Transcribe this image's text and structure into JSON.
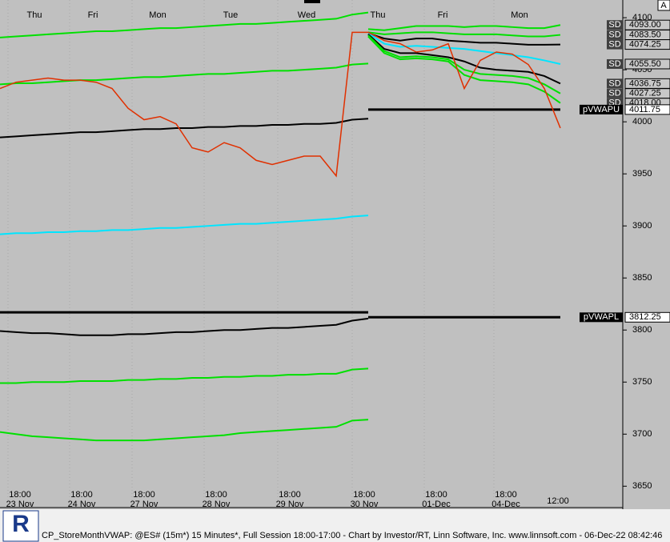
{
  "chart_data": {
    "type": "line",
    "ylim": [
      3631,
      4117
    ],
    "yticks": [
      3650,
      3700,
      3750,
      3800,
      3850,
      3900,
      3950,
      4000,
      4050,
      4100
    ],
    "days_top": [
      "Thu",
      "Fri",
      "Mon",
      "Tue",
      "Wed",
      "Thu",
      "Fri",
      "Mon"
    ],
    "times_bottom": [
      {
        "time": "18:00",
        "date": "23 Nov"
      },
      {
        "time": "18:00",
        "date": "24 Nov"
      },
      {
        "time": "18:00",
        "date": "27 Nov"
      },
      {
        "time": "18:00",
        "date": "28 Nov"
      },
      {
        "time": "18:00",
        "date": "29 Nov"
      },
      {
        "time": "18:00",
        "date": "30 Nov"
      },
      {
        "time": "18:00",
        "date": "01-Dec"
      },
      {
        "time": "18:00",
        "date": "04-Dec"
      }
    ],
    "time_end": "12:00",
    "series": [
      {
        "color": "#00e000",
        "width": 2,
        "values": [
          4081,
          4082,
          4083,
          4084,
          4085,
          4086,
          4087,
          4087,
          4088,
          4089,
          4090,
          4090,
          4091,
          4092,
          4093,
          4094,
          4094,
          4095,
          4096,
          4097,
          4098,
          4099,
          4103,
          4105,
          null,
          null,
          null,
          null,
          null,
          null,
          null,
          null,
          null,
          null,
          null,
          null
        ]
      },
      {
        "color": "#00e000",
        "width": 2,
        "values": [
          4036,
          4037,
          4037,
          4038,
          4039,
          4040,
          4040,
          4041,
          4042,
          4043,
          4043,
          4044,
          4045,
          4046,
          4046,
          4047,
          4048,
          4049,
          4049,
          4050,
          4051,
          4052,
          4055,
          4056,
          null,
          null,
          null,
          null,
          null,
          null,
          null,
          null,
          null,
          null,
          null,
          null
        ]
      },
      {
        "color": "#000000",
        "width": 2,
        "values": [
          3985,
          3986,
          3987,
          3988,
          3989,
          3990,
          3990,
          3991,
          3992,
          3993,
          3993,
          3994,
          3994,
          3995,
          3995,
          3996,
          3996,
          3997,
          3997,
          3998,
          3998,
          3999,
          4002,
          4003,
          null,
          null,
          null,
          null,
          null,
          null,
          null,
          null,
          null,
          null,
          null,
          null
        ]
      },
      {
        "color": "#00e5ff",
        "width": 2,
        "values": [
          3892,
          3893,
          3893,
          3894,
          3894,
          3895,
          3895,
          3896,
          3896,
          3897,
          3898,
          3898,
          3899,
          3900,
          3901,
          3902,
          3902,
          3903,
          3904,
          3905,
          3906,
          3907,
          3909,
          3910,
          null,
          null,
          null,
          null,
          null,
          null,
          null,
          null,
          null,
          null,
          null,
          null
        ]
      },
      {
        "color": "#000000",
        "width": 3,
        "values": [
          3817,
          3817,
          3817,
          3817,
          3817,
          3817,
          3817,
          3817,
          3817,
          3817,
          3817,
          3817,
          3817,
          3817,
          3817,
          3817,
          3817,
          3817,
          3817,
          3817,
          3817,
          3817,
          3817,
          3817,
          null,
          null,
          null,
          null,
          null,
          null,
          null,
          null,
          null,
          null,
          null,
          null
        ]
      },
      {
        "color": "#000000",
        "width": 2,
        "values": [
          3799,
          3798,
          3797,
          3797,
          3796,
          3795,
          3795,
          3795,
          3796,
          3796,
          3797,
          3798,
          3798,
          3799,
          3800,
          3800,
          3801,
          3802,
          3802,
          3803,
          3804,
          3805,
          3809,
          3811,
          null,
          null,
          null,
          null,
          null,
          null,
          null,
          null,
          null,
          null,
          null,
          null
        ]
      },
      {
        "color": "#00e000",
        "width": 2,
        "values": [
          3749,
          3749,
          3750,
          3750,
          3750,
          3751,
          3751,
          3751,
          3752,
          3752,
          3753,
          3753,
          3754,
          3754,
          3755,
          3755,
          3756,
          3756,
          3757,
          3757,
          3758,
          3758,
          3762,
          3763,
          null,
          null,
          null,
          null,
          null,
          null,
          null,
          null,
          null,
          null,
          null,
          null
        ]
      },
      {
        "color": "#00e000",
        "width": 2,
        "values": [
          3702,
          3700,
          3698,
          3697,
          3696,
          3695,
          3694,
          3694,
          3694,
          3694,
          3695,
          3696,
          3697,
          3698,
          3699,
          3701,
          3702,
          3703,
          3704,
          3705,
          3706,
          3707,
          3713,
          3714,
          null,
          null,
          null,
          null,
          null,
          null,
          null,
          null,
          null,
          null,
          null,
          null
        ]
      },
      {
        "color": "#000000",
        "width": 3,
        "values": [
          null,
          null,
          null,
          null,
          null,
          null,
          null,
          null,
          null,
          null,
          null,
          null,
          null,
          null,
          null,
          null,
          null,
          null,
          null,
          null,
          null,
          null,
          null,
          4011.75,
          4011.75,
          4011.75,
          4011.75,
          4011.75,
          4011.75,
          4011.75,
          4011.75,
          4011.75,
          4011.75,
          4011.75,
          4011.75,
          4011.75
        ]
      },
      {
        "color": "#000000",
        "width": 3,
        "values": [
          null,
          null,
          null,
          null,
          null,
          null,
          null,
          null,
          null,
          null,
          null,
          null,
          null,
          null,
          null,
          null,
          null,
          null,
          null,
          null,
          null,
          null,
          null,
          3812.25,
          3812.25,
          3812.25,
          3812.25,
          3812.25,
          3812.25,
          3812.25,
          3812.25,
          3812.25,
          3812.25,
          3812.25,
          3812.25,
          3812.25
        ]
      },
      {
        "color": "#00e000",
        "width": 2,
        "values": [
          null,
          null,
          null,
          null,
          null,
          null,
          null,
          null,
          null,
          null,
          null,
          null,
          null,
          null,
          null,
          null,
          null,
          null,
          null,
          null,
          null,
          null,
          null,
          4089,
          4088,
          4090,
          4092,
          4092,
          4092,
          4091,
          4092,
          4092,
          4091,
          4090,
          4090,
          4093
        ]
      },
      {
        "color": "#00e000",
        "width": 2,
        "values": [
          null,
          null,
          null,
          null,
          null,
          null,
          null,
          null,
          null,
          null,
          null,
          null,
          null,
          null,
          null,
          null,
          null,
          null,
          null,
          null,
          null,
          null,
          null,
          4086,
          4084,
          4085,
          4086,
          4086,
          4085,
          4084,
          4084,
          4084,
          4083,
          4082,
          4082,
          4083.5
        ]
      },
      {
        "color": "#000000",
        "width": 2,
        "values": [
          null,
          null,
          null,
          null,
          null,
          null,
          null,
          null,
          null,
          null,
          null,
          null,
          null,
          null,
          null,
          null,
          null,
          null,
          null,
          null,
          null,
          null,
          null,
          4085,
          4080,
          4078,
          4080,
          4080,
          4078,
          4077,
          4076,
          4076,
          4075,
          4074,
          4074,
          4074.25
        ]
      },
      {
        "color": "#00e5ff",
        "width": 2,
        "values": [
          null,
          null,
          null,
          null,
          null,
          null,
          null,
          null,
          null,
          null,
          null,
          null,
          null,
          null,
          null,
          null,
          null,
          null,
          null,
          null,
          null,
          null,
          null,
          4085,
          4075,
          4072,
          4073,
          4072,
          4071,
          4070,
          4068,
          4066,
          4064,
          4062,
          4059,
          4055.5
        ]
      },
      {
        "color": "#000000",
        "width": 2,
        "values": [
          null,
          null,
          null,
          null,
          null,
          null,
          null,
          null,
          null,
          null,
          null,
          null,
          null,
          null,
          null,
          null,
          null,
          null,
          null,
          null,
          null,
          null,
          null,
          4084,
          4070,
          4066,
          4066,
          4064,
          4062,
          4058,
          4052,
          4050,
          4049,
          4048,
          4044,
          4036.75
        ]
      },
      {
        "color": "#00e000",
        "width": 2,
        "values": [
          null,
          null,
          null,
          null,
          null,
          null,
          null,
          null,
          null,
          null,
          null,
          null,
          null,
          null,
          null,
          null,
          null,
          null,
          null,
          null,
          null,
          null,
          null,
          4083,
          4068,
          4062,
          4063,
          4062,
          4060,
          4050,
          4046,
          4045,
          4044,
          4042,
          4036,
          4027.25
        ]
      },
      {
        "color": "#00e000",
        "width": 2,
        "values": [
          null,
          null,
          null,
          null,
          null,
          null,
          null,
          null,
          null,
          null,
          null,
          null,
          null,
          null,
          null,
          null,
          null,
          null,
          null,
          null,
          null,
          null,
          null,
          4082,
          4066,
          4060,
          4061,
          4060,
          4058,
          4045,
          4040,
          4039,
          4038,
          4036,
          4029,
          4018
        ]
      },
      {
        "color": "#e03000",
        "width": 1.5,
        "values": [
          4032,
          4038,
          4040,
          4042,
          4040,
          4040,
          4038,
          4032,
          4013,
          4002,
          4005,
          3998,
          3975,
          3971,
          3980,
          3975,
          3963,
          3959,
          3963,
          3967,
          3967,
          3948,
          4086,
          4086,
          4078,
          4075,
          4067,
          4069,
          4075,
          4032,
          4059,
          4067,
          4065,
          4055,
          4032,
          3994
        ]
      }
    ],
    "levels": [
      {
        "name": "SD",
        "value": 4093,
        "label": "4093.00"
      },
      {
        "name": "SD",
        "value": 4083.5,
        "label": "4083.50"
      },
      {
        "name": "SD",
        "value": 4074.25,
        "label": "4074.25"
      },
      {
        "name": "SD",
        "value": 4055.5,
        "label": "4055.50"
      },
      {
        "name": "SD",
        "value": 4036.75,
        "label": "4036.75"
      },
      {
        "name": "SD",
        "value": 4027.25,
        "label": "4027.25"
      },
      {
        "name": "SD",
        "value": 4018,
        "label": "4018.00"
      },
      {
        "name": "pVWAPU",
        "value": 4011.75,
        "label": "4011.75"
      },
      {
        "name": "pVWAPL",
        "value": 3812.25,
        "label": "3812.25"
      }
    ]
  },
  "corner_button": "A",
  "footer": {
    "caption": "CP_StoreMonthVWAP: @ES# (15m*) 15 Minutes*, Full Session 18:00-17:00 - Chart by Investor/RT, Linn Software, Inc. www.linnsoft.com - 06-Dec-22 08:42:46"
  }
}
